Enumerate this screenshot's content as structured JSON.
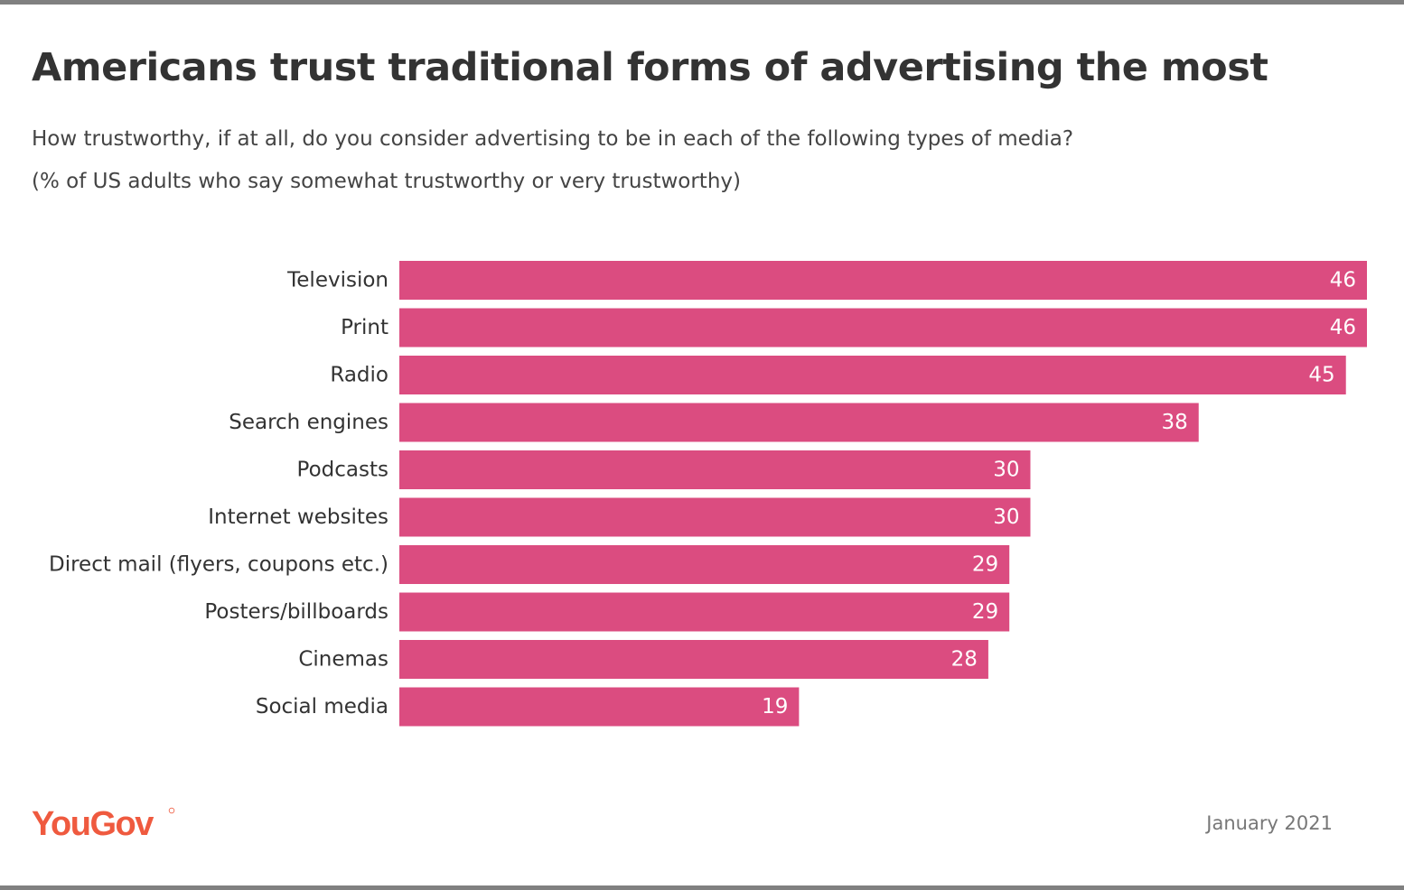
{
  "header": {
    "title": "Americans trust traditional forms of advertising the most",
    "question": "How trustworthy, if at all, do you consider advertising to be in each of the following types of media?",
    "note": "(% of US adults who say somewhat trustworthy or very trustworthy)"
  },
  "footer": {
    "brand": "YouGov",
    "date": "January 2021"
  },
  "colors": {
    "bar": "#db4c80",
    "brand": "#ef5a3f",
    "text": "#333333"
  },
  "chart_data": {
    "type": "bar",
    "orientation": "horizontal",
    "title": "Americans trust traditional forms of advertising the most",
    "xlabel": "",
    "ylabel": "",
    "xlim": [
      0,
      46
    ],
    "grid": false,
    "categories": [
      "Television",
      "Print",
      "Radio",
      "Search engines",
      "Podcasts",
      "Internet websites",
      "Direct mail (flyers, coupons etc.)",
      "Posters/billboards",
      "Cinemas",
      "Social media"
    ],
    "values": [
      46,
      46,
      45,
      38,
      30,
      30,
      29,
      29,
      28,
      19
    ]
  }
}
